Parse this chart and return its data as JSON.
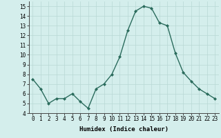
{
  "x": [
    0,
    1,
    2,
    3,
    4,
    5,
    6,
    7,
    8,
    9,
    10,
    11,
    12,
    13,
    14,
    15,
    16,
    17,
    18,
    19,
    20,
    21,
    22,
    23
  ],
  "y": [
    7.5,
    6.5,
    5.0,
    5.5,
    5.5,
    6.0,
    5.2,
    4.5,
    6.5,
    7.0,
    8.0,
    9.8,
    12.5,
    14.5,
    15.0,
    14.8,
    13.3,
    13.0,
    10.2,
    8.2,
    7.3,
    6.5,
    6.0,
    5.5
  ],
  "line_color": "#2a6b5c",
  "marker": "D",
  "marker_size": 2,
  "bg_color": "#d4eeec",
  "grid_color": "#b8d8d4",
  "xlabel": "Humidex (Indice chaleur)",
  "ylim": [
    4,
    15.5
  ],
  "xlim": [
    -0.5,
    23.5
  ],
  "yticks": [
    4,
    5,
    6,
    7,
    8,
    9,
    10,
    11,
    12,
    13,
    14,
    15
  ],
  "xticks": [
    0,
    1,
    2,
    3,
    4,
    5,
    6,
    7,
    8,
    9,
    10,
    11,
    12,
    13,
    14,
    15,
    16,
    17,
    18,
    19,
    20,
    21,
    22,
    23
  ],
  "xlabel_fontsize": 6.5,
  "tick_fontsize": 5.5,
  "line_width": 1.0
}
